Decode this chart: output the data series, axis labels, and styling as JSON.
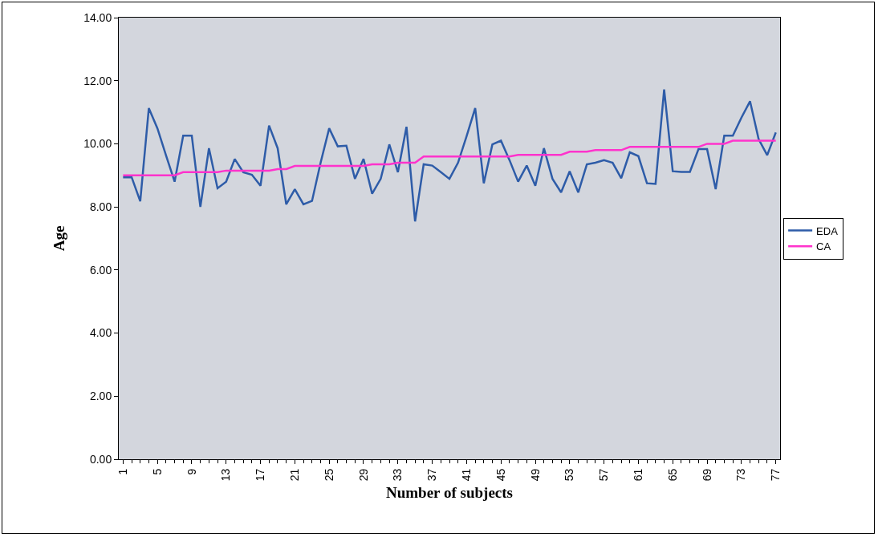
{
  "chart_data": {
    "type": "line",
    "xlabel": "Number of subjects",
    "ylabel": "Age",
    "categories": [
      "1",
      null,
      null,
      null,
      "5",
      null,
      null,
      null,
      "9",
      null,
      null,
      null,
      "13",
      null,
      null,
      null,
      "17",
      null,
      null,
      null,
      "21",
      null,
      null,
      null,
      "25",
      null,
      null,
      null,
      "29",
      null,
      null,
      null,
      "33",
      null,
      null,
      null,
      "37",
      null,
      null,
      null,
      "41",
      null,
      null,
      null,
      "45",
      null,
      null,
      null,
      "49",
      null,
      null,
      null,
      "53",
      null,
      null,
      null,
      "57",
      null,
      null,
      null,
      "61",
      null,
      null,
      null,
      "65",
      null,
      null,
      null,
      "69",
      null,
      null,
      null,
      "73",
      null,
      null,
      null,
      "77"
    ],
    "series": [
      {
        "name": "EDA",
        "color": "#2e5ca8",
        "values": [
          8.94,
          8.94,
          8.18,
          11.13,
          10.49,
          9.63,
          8.8,
          10.26,
          10.26,
          8.0,
          9.86,
          8.59,
          8.8,
          9.52,
          9.1,
          9.02,
          8.67,
          10.58,
          9.86,
          8.08,
          8.56,
          8.08,
          8.19,
          9.4,
          10.49,
          9.92,
          9.94,
          8.89,
          9.52,
          8.42,
          8.89,
          9.98,
          9.1,
          10.54,
          7.54,
          9.35,
          9.31,
          9.1,
          8.89,
          9.4,
          10.24,
          11.13,
          8.75,
          9.98,
          10.1,
          9.48,
          8.8,
          9.31,
          8.67,
          9.86,
          8.89,
          8.46,
          9.13,
          8.46,
          9.35,
          9.4,
          9.48,
          9.4,
          8.91,
          9.73,
          9.61,
          8.75,
          8.73,
          11.72,
          9.13,
          9.11,
          9.11,
          9.83,
          9.83,
          8.56,
          10.26,
          10.26,
          10.83,
          11.35,
          10.15,
          9.64,
          10.36
        ]
      },
      {
        "name": "CA",
        "color": "#ff33cc",
        "values": [
          9.0,
          9.0,
          9.0,
          9.0,
          9.0,
          9.0,
          9.0,
          9.1,
          9.1,
          9.1,
          9.1,
          9.1,
          9.15,
          9.15,
          9.15,
          9.15,
          9.15,
          9.15,
          9.2,
          9.2,
          9.3,
          9.3,
          9.3,
          9.3,
          9.3,
          9.3,
          9.3,
          9.3,
          9.3,
          9.35,
          9.35,
          9.35,
          9.4,
          9.4,
          9.4,
          9.6,
          9.6,
          9.6,
          9.6,
          9.6,
          9.6,
          9.6,
          9.6,
          9.6,
          9.6,
          9.6,
          9.65,
          9.65,
          9.65,
          9.65,
          9.65,
          9.65,
          9.75,
          9.75,
          9.75,
          9.8,
          9.8,
          9.8,
          9.8,
          9.9,
          9.9,
          9.9,
          9.9,
          9.9,
          9.9,
          9.9,
          9.9,
          9.9,
          10.0,
          10.0,
          10.0,
          10.1,
          10.1,
          10.1,
          10.1,
          10.1,
          10.1
        ]
      }
    ],
    "ylim": [
      0,
      14
    ],
    "yticks": [
      {
        "value": 0,
        "label": "0.00"
      },
      {
        "value": 2,
        "label": "2.00"
      },
      {
        "value": 4,
        "label": "4.00"
      },
      {
        "value": 6,
        "label": "6.00"
      },
      {
        "value": 8,
        "label": "8.00"
      },
      {
        "value": 10,
        "label": "10.00"
      },
      {
        "value": 12,
        "label": "12.00"
      },
      {
        "value": 14,
        "label": "14.00"
      }
    ],
    "grid": false,
    "legend": "right",
    "marker": "none",
    "line_style": "solid"
  }
}
